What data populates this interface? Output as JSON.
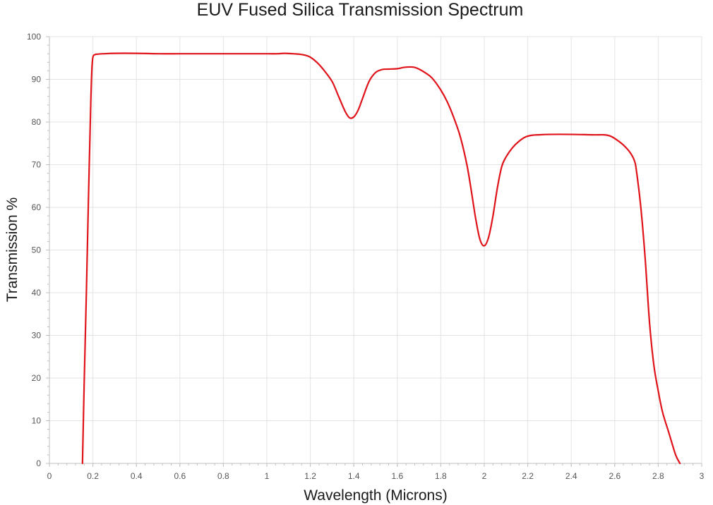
{
  "chart_data": {
    "type": "line",
    "title": "EUV Fused Silica Transmission Spectrum",
    "xlabel": "Wavelength (Microns)",
    "ylabel": "Transmission %",
    "xlim": [
      0,
      3
    ],
    "ylim": [
      0,
      100
    ],
    "x_ticks": [
      "0",
      "0.2",
      "0.4",
      "0.6",
      "0.8",
      "1",
      "1.2",
      "1.4",
      "1.6",
      "1.8",
      "2",
      "2.2",
      "2.4",
      "2.6",
      "2.8",
      "3"
    ],
    "y_ticks": [
      "0",
      "10",
      "20",
      "30",
      "40",
      "50",
      "60",
      "70",
      "80",
      "90",
      "100"
    ],
    "grid": true,
    "legend": "none",
    "line_color": "#e0131a",
    "series": [
      {
        "x": [
          0.152,
          0.16,
          0.17,
          0.18,
          0.19,
          0.195,
          0.2,
          0.21,
          0.22,
          0.25,
          0.3,
          0.4,
          0.5,
          0.6,
          0.7,
          0.8,
          0.9,
          1.0,
          1.05,
          1.08,
          1.12,
          1.15,
          1.18,
          1.2,
          1.23,
          1.26,
          1.3,
          1.33,
          1.36,
          1.38,
          1.4,
          1.42,
          1.44,
          1.47,
          1.5,
          1.53,
          1.56,
          1.6,
          1.63,
          1.66,
          1.68,
          1.7,
          1.73,
          1.76,
          1.8,
          1.83,
          1.86,
          1.89,
          1.92,
          1.94,
          1.96,
          1.98,
          2.0,
          2.02,
          2.04,
          2.06,
          2.08,
          2.1,
          2.13,
          2.16,
          2.19,
          2.22,
          2.25,
          2.3,
          2.4,
          2.5,
          2.55,
          2.58,
          2.61,
          2.64,
          2.67,
          2.69,
          2.7,
          2.72,
          2.74,
          2.76,
          2.78,
          2.8,
          2.82,
          2.85,
          2.88,
          2.9
        ],
        "y": [
          0,
          19,
          40,
          63,
          84,
          92,
          95.2,
          95.8,
          95.9,
          96.0,
          96.1,
          96.1,
          96.0,
          96.0,
          96.0,
          96.0,
          96.0,
          96.0,
          96.0,
          96.1,
          96.0,
          95.9,
          95.6,
          95.2,
          94.0,
          92.3,
          89.5,
          86.0,
          82.5,
          81.0,
          81.2,
          82.8,
          85.5,
          89.5,
          91.6,
          92.3,
          92.4,
          92.5,
          92.8,
          92.9,
          92.8,
          92.4,
          91.5,
          90.3,
          87.5,
          84.7,
          81.0,
          76.5,
          70.0,
          64.0,
          57.5,
          52.5,
          51.0,
          53.0,
          58.0,
          64.5,
          69.5,
          71.8,
          74.0,
          75.5,
          76.5,
          76.9,
          77.0,
          77.1,
          77.1,
          77.0,
          77.0,
          76.7,
          75.8,
          74.6,
          72.9,
          71.0,
          68.5,
          60.0,
          48.0,
          33.0,
          23.0,
          17.0,
          12.0,
          7.0,
          2.0,
          0
        ]
      }
    ]
  }
}
